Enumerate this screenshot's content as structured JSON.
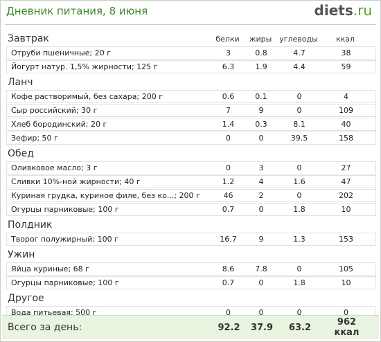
{
  "header": {
    "title": "Дневник питания, 8 июня",
    "logo_main": "diets",
    "logo_suffix": ".ru"
  },
  "columns": [
    "белки",
    "жиры",
    "углеводы",
    "ккал"
  ],
  "sections": [
    {
      "name": "Завтрак",
      "rows": [
        [
          "Отруби пшеничные; 20 г",
          3,
          0.8,
          4.7,
          38
        ],
        [
          "Йогурт натур. 1,5% жирности; 125 г",
          6.3,
          1.9,
          4.4,
          59
        ]
      ]
    },
    {
      "name": "Ланч",
      "rows": [
        [
          "Кофе растворимый, без сахара; 200 г",
          0.6,
          0.1,
          0,
          4
        ],
        [
          "Сыр российский; 30 г",
          7,
          9,
          0,
          109
        ],
        [
          "Хлеб бородинский; 20 г",
          1.4,
          0.3,
          8.1,
          40
        ],
        [
          "Зефир; 50 г",
          0,
          0,
          39.5,
          158
        ]
      ]
    },
    {
      "name": "Обед",
      "rows": [
        [
          "Оливковое масло; 3 г",
          0,
          3,
          0,
          27
        ],
        [
          "Сливки 10%-ной жирности; 40 г",
          1.2,
          4,
          1.6,
          47
        ],
        [
          "Куриная грудка, куриное филе, без ко...; 200 г",
          46,
          2,
          0,
          202
        ],
        [
          "Огурцы парниковые; 100 г",
          0.7,
          0,
          1.8,
          10
        ]
      ]
    },
    {
      "name": "Полдник",
      "rows": [
        [
          "Творог полужирный; 100 г",
          16.7,
          9,
          1.3,
          153
        ]
      ]
    },
    {
      "name": "Ужин",
      "rows": [
        [
          "Яйца куриные; 68 г",
          8.6,
          7.8,
          0,
          105
        ],
        [
          "Огурцы парниковые; 100 г",
          0.7,
          0,
          1.8,
          10
        ]
      ]
    },
    {
      "name": "Другое",
      "rows": [
        [
          "Вода питьевая; 500 г",
          0,
          0,
          0,
          0
        ]
      ]
    }
  ],
  "total": {
    "label": "Всего за день:",
    "values": [
      92.2,
      37.9,
      63.2,
      "962 ккал"
    ]
  }
}
